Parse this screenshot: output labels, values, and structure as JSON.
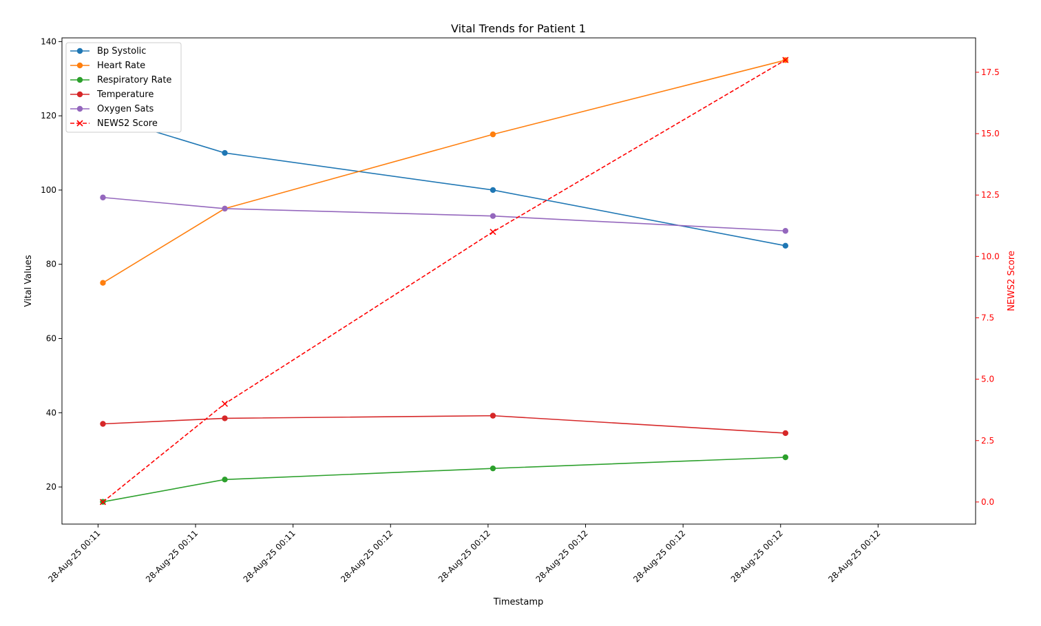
{
  "chart_data": {
    "type": "line",
    "title": "Vital Trends for Patient 1",
    "xlabel": "Timestamp",
    "ylabel": "Vital Values",
    "y2label": "NEWS2 Score",
    "x_ticks": [
      "28-Aug-25 00:11",
      "28-Aug-25 00:11",
      "28-Aug-25 00:11",
      "28-Aug-25 00:12",
      "28-Aug-25 00:12",
      "28-Aug-25 00:12",
      "28-Aug-25 00:12",
      "28-Aug-25 00:12",
      "28-Aug-25 00:12"
    ],
    "y_ticks": [
      20,
      40,
      60,
      80,
      100,
      120,
      140
    ],
    "y2_ticks": [
      "0.0",
      "2.5",
      "5.0",
      "7.5",
      "10.0",
      "12.5",
      "15.0",
      "17.5"
    ],
    "ylim": [
      10,
      141
    ],
    "y2lim": [
      -0.9,
      18.9
    ],
    "x_point_ticks": [
      0.05,
      1.3,
      4.05,
      7.05
    ],
    "x_range": [
      -0.37,
      9.0
    ],
    "x_tick_positions": [
      0,
      1,
      2,
      3,
      4,
      5,
      6,
      7,
      8
    ],
    "series": [
      {
        "name": "Bp Systolic",
        "color": "#1f77b4",
        "values": [
          120,
          110,
          100,
          85
        ],
        "marker": "o",
        "axis": "left"
      },
      {
        "name": "Heart Rate",
        "color": "#ff7f0e",
        "values": [
          75,
          95,
          115,
          135
        ],
        "marker": "o",
        "axis": "left"
      },
      {
        "name": "Respiratory Rate",
        "color": "#2ca02c",
        "values": [
          16,
          22,
          25,
          28
        ],
        "marker": "o",
        "axis": "left"
      },
      {
        "name": "Temperature",
        "color": "#d62728",
        "values": [
          37,
          38.5,
          39.2,
          34.5
        ],
        "marker": "o",
        "axis": "left"
      },
      {
        "name": "Oxygen Sats",
        "color": "#9467bd",
        "values": [
          98,
          95,
          93,
          89
        ],
        "marker": "o",
        "axis": "left"
      },
      {
        "name": "NEWS2 Score",
        "color": "#ff0000",
        "values": [
          0,
          4,
          11,
          18
        ],
        "marker": "x",
        "dashed": true,
        "axis": "right"
      }
    ],
    "legend_position": "top-left",
    "grid": false
  }
}
